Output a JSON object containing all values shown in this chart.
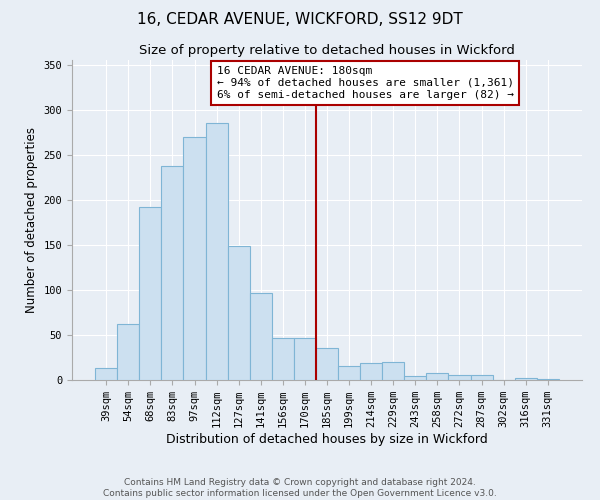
{
  "title": "16, CEDAR AVENUE, WICKFORD, SS12 9DT",
  "subtitle": "Size of property relative to detached houses in Wickford",
  "xlabel": "Distribution of detached houses by size in Wickford",
  "ylabel": "Number of detached properties",
  "bar_labels": [
    "39sqm",
    "54sqm",
    "68sqm",
    "83sqm",
    "97sqm",
    "112sqm",
    "127sqm",
    "141sqm",
    "156sqm",
    "170sqm",
    "185sqm",
    "199sqm",
    "214sqm",
    "229sqm",
    "243sqm",
    "258sqm",
    "272sqm",
    "287sqm",
    "302sqm",
    "316sqm",
    "331sqm"
  ],
  "bar_values": [
    13,
    62,
    192,
    237,
    270,
    285,
    149,
    96,
    47,
    47,
    36,
    16,
    19,
    20,
    4,
    8,
    5,
    5,
    0,
    2,
    1
  ],
  "bar_color": "#cce0f0",
  "bar_edge_color": "#7fb5d5",
  "vline_x": 9.5,
  "vline_color": "#aa0000",
  "annotation_text": "16 CEDAR AVENUE: 180sqm\n← 94% of detached houses are smaller (1,361)\n6% of semi-detached houses are larger (82) →",
  "annotation_box_color": "white",
  "annotation_box_edge_color": "#aa0000",
  "ylim": [
    0,
    355
  ],
  "yticks": [
    0,
    50,
    100,
    150,
    200,
    250,
    300,
    350
  ],
  "bg_color": "#e8eef5",
  "grid_color": "#ffffff",
  "footer_text": "Contains HM Land Registry data © Crown copyright and database right 2024.\nContains public sector information licensed under the Open Government Licence v3.0.",
  "title_fontsize": 11,
  "subtitle_fontsize": 9.5,
  "xlabel_fontsize": 9,
  "ylabel_fontsize": 8.5,
  "tick_fontsize": 7.5,
  "annotation_fontsize": 8,
  "footer_fontsize": 6.5
}
